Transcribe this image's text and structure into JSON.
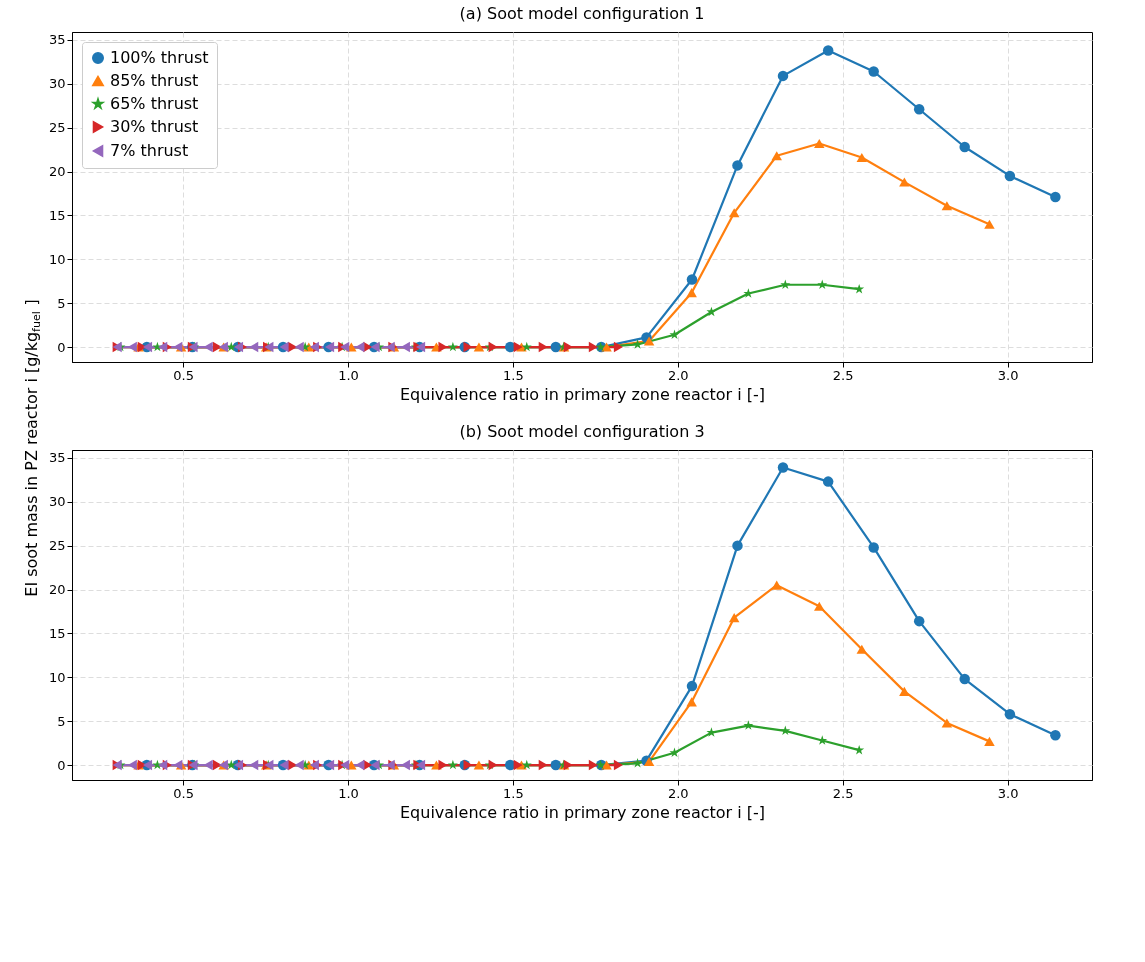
{
  "chart_data": [
    {
      "type": "line",
      "title": "(a) Soot model configuration 1",
      "xlabel": "Equivalence ratio in primary zone reactor i [-]",
      "ylabel": "EI soot mass in PZ reactor i [g/kg$_{fuel}$]",
      "xlim": [
        0.163,
        3.256
      ],
      "ylim": [
        -1.7,
        35.9
      ],
      "xticks": [
        0.5,
        {
          "value": 1,
          "label": "1.0"
        },
        1.5,
        {
          "value": 2,
          "label": "2.0"
        },
        2.5,
        {
          "value": 3,
          "label": "3.0"
        }
      ],
      "yticks": [
        0,
        5,
        10,
        15,
        20,
        25,
        30,
        35
      ],
      "grid": true,
      "legend": "top left",
      "line_style": "solid",
      "series": [
        {
          "name": "100% thrust",
          "color": "#1f77b4",
          "marker": "circle",
          "x": [
            0.39,
            0.528,
            0.666,
            0.803,
            0.941,
            1.079,
            1.217,
            1.354,
            1.492,
            1.63,
            1.768,
            1.905,
            2.043,
            2.181,
            2.319,
            2.456,
            2.594,
            2.732,
            2.87,
            3.007,
            3.145
          ],
          "values": [
            0,
            0,
            0,
            0,
            0,
            0,
            0,
            0,
            0,
            0,
            0,
            1.1,
            7.7,
            20.7,
            30.9,
            33.8,
            31.4,
            27.1,
            22.8,
            19.5,
            17.1
          ]
        },
        {
          "name": "85% thrust",
          "color": "#ff7f0e",
          "marker": "triangle",
          "x": [
            0.365,
            0.494,
            0.623,
            0.752,
            0.881,
            1.01,
            1.139,
            1.268,
            1.397,
            1.526,
            1.655,
            1.784,
            1.913,
            2.042,
            2.171,
            2.3,
            2.429,
            2.558,
            2.687,
            2.816,
            2.945
          ],
          "values": [
            0,
            0,
            0,
            0,
            0,
            0,
            0,
            0,
            0,
            0,
            0,
            0,
            0.7,
            6.2,
            15.3,
            21.8,
            23.2,
            21.6,
            18.8,
            16.1,
            14.0
          ]
        },
        {
          "name": "65% thrust",
          "color": "#2ca02c",
          "marker": "star",
          "x": [
            0.31,
            0.422,
            0.534,
            0.646,
            0.758,
            0.87,
            0.982,
            1.094,
            1.206,
            1.318,
            1.43,
            1.542,
            1.654,
            1.766,
            1.878,
            1.99,
            2.102,
            2.214,
            2.326,
            2.438,
            2.55
          ],
          "values": [
            0,
            0,
            0,
            0,
            0,
            0,
            0,
            0,
            0,
            0,
            0,
            0,
            0,
            0,
            0.3,
            1.4,
            4.0,
            6.1,
            7.1,
            7.1,
            6.6
          ]
        },
        {
          "name": "30% thrust",
          "color": "#d62728",
          "marker": "triangle-right",
          "x": [
            0.3,
            0.376,
            0.452,
            0.528,
            0.604,
            0.68,
            0.756,
            0.832,
            0.908,
            0.984,
            1.06,
            1.136,
            1.212,
            1.288,
            1.364,
            1.44,
            1.516,
            1.592,
            1.668,
            1.744,
            1.82
          ],
          "values": [
            0,
            0,
            0,
            0,
            0,
            0,
            0,
            0,
            0,
            0,
            0,
            0,
            0,
            0,
            0,
            0,
            0,
            0,
            0,
            0,
            0
          ]
        },
        {
          "name": "7% thrust",
          "color": "#9467bd",
          "marker": "triangle-left",
          "x": [
            0.3,
            0.346,
            0.392,
            0.438,
            0.484,
            0.53,
            0.576,
            0.622,
            0.668,
            0.714,
            0.76,
            0.806,
            0.852,
            0.898,
            0.944,
            0.99,
            1.036,
            1.082,
            1.128,
            1.174,
            1.22
          ],
          "values": [
            0,
            0,
            0,
            0,
            0,
            0,
            0,
            0,
            0,
            0,
            0,
            0,
            0,
            0,
            0,
            0,
            0,
            0,
            0,
            0,
            0
          ]
        }
      ]
    },
    {
      "type": "line",
      "title": "(b) Soot model configuration 3",
      "xlabel": "Equivalence ratio in primary zone reactor i [-]",
      "xlim": [
        0.163,
        3.256
      ],
      "ylim": [
        -1.7,
        35.9
      ],
      "xticks": [
        0.5,
        {
          "value": 1,
          "label": "1.0"
        },
        1.5,
        {
          "value": 2,
          "label": "2.0"
        },
        2.5,
        {
          "value": 3,
          "label": "3.0"
        }
      ],
      "yticks": [
        0,
        5,
        10,
        15,
        20,
        25,
        30,
        35
      ],
      "grid": true,
      "line_style": "solid",
      "series": [
        {
          "color": "#1f77b4",
          "marker": "circle",
          "x": [
            0.39,
            0.528,
            0.666,
            0.803,
            0.941,
            1.079,
            1.217,
            1.354,
            1.492,
            1.63,
            1.768,
            1.905,
            2.043,
            2.181,
            2.319,
            2.456,
            2.594,
            2.732,
            2.87,
            3.007,
            3.145
          ],
          "values": [
            0,
            0,
            0,
            0,
            0,
            0,
            0,
            0,
            0,
            0,
            0,
            0.5,
            9.0,
            25.0,
            33.9,
            32.3,
            24.8,
            16.4,
            9.8,
            5.8,
            3.4
          ]
        },
        {
          "color": "#ff7f0e",
          "marker": "triangle",
          "x": [
            0.365,
            0.494,
            0.623,
            0.752,
            0.881,
            1.01,
            1.139,
            1.268,
            1.397,
            1.526,
            1.655,
            1.784,
            1.913,
            2.042,
            2.171,
            2.3,
            2.429,
            2.558,
            2.687,
            2.816,
            2.945
          ],
          "values": [
            0,
            0,
            0,
            0,
            0,
            0,
            0,
            0,
            0,
            0,
            0,
            0,
            0.4,
            7.2,
            16.8,
            20.5,
            18.1,
            13.2,
            8.4,
            4.8,
            2.7
          ]
        },
        {
          "color": "#2ca02c",
          "marker": "star",
          "x": [
            0.31,
            0.422,
            0.534,
            0.646,
            0.758,
            0.87,
            0.982,
            1.094,
            1.206,
            1.318,
            1.43,
            1.542,
            1.654,
            1.766,
            1.878,
            1.99,
            2.102,
            2.214,
            2.326,
            2.438,
            2.55
          ],
          "values": [
            0,
            0,
            0,
            0,
            0,
            0,
            0,
            0,
            0,
            0,
            0,
            0,
            0,
            0,
            0.2,
            1.4,
            3.7,
            4.5,
            3.9,
            2.8,
            1.7
          ]
        },
        {
          "color": "#d62728",
          "marker": "triangle-right",
          "x": [
            0.3,
            0.376,
            0.452,
            0.528,
            0.604,
            0.68,
            0.756,
            0.832,
            0.908,
            0.984,
            1.06,
            1.136,
            1.212,
            1.288,
            1.364,
            1.44,
            1.516,
            1.592,
            1.668,
            1.744,
            1.82
          ],
          "values": [
            0,
            0,
            0,
            0,
            0,
            0,
            0,
            0,
            0,
            0,
            0,
            0,
            0,
            0,
            0,
            0,
            0,
            0,
            0,
            0,
            0
          ]
        },
        {
          "color": "#9467bd",
          "marker": "triangle-left",
          "x": [
            0.3,
            0.346,
            0.392,
            0.438,
            0.484,
            0.53,
            0.576,
            0.622,
            0.668,
            0.714,
            0.76,
            0.806,
            0.852,
            0.898,
            0.944,
            0.99,
            1.036,
            1.082,
            1.128,
            1.174,
            1.22
          ],
          "values": [
            0,
            0,
            0,
            0,
            0,
            0,
            0,
            0,
            0,
            0,
            0,
            0,
            0,
            0,
            0,
            0,
            0,
            0,
            0,
            0,
            0
          ]
        }
      ]
    }
  ]
}
